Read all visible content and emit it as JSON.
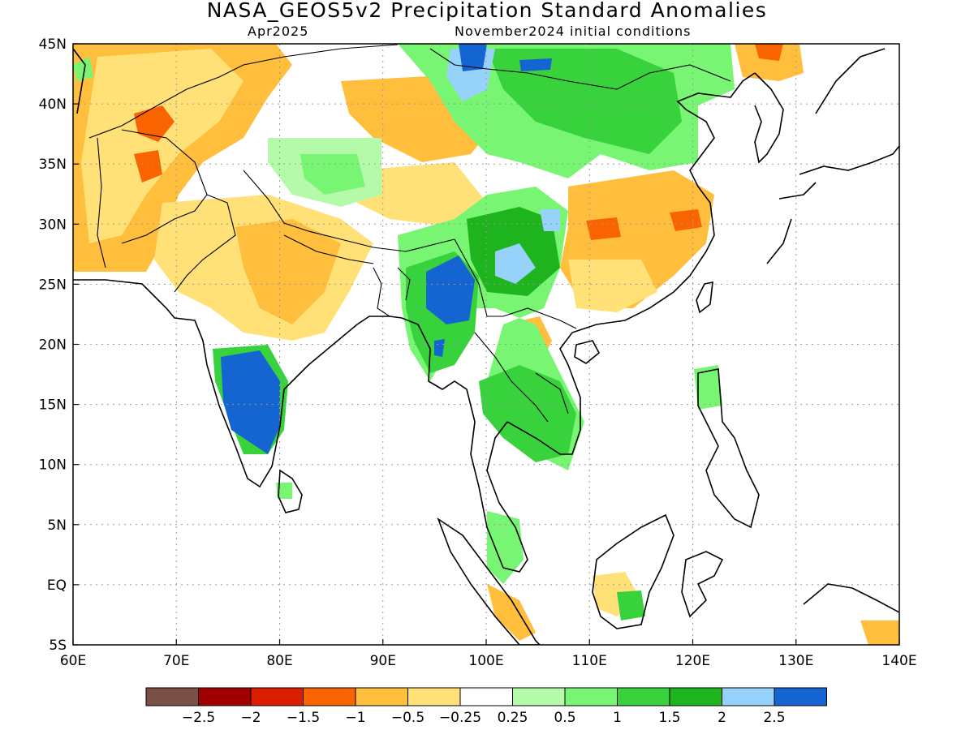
{
  "header": {
    "title": "NASA_GEOS5v2 Precipitation Standard Anomalies",
    "valid_month": "Apr2025",
    "init_conditions": "November2024 initial conditions"
  },
  "map": {
    "lon_range": [
      60,
      140
    ],
    "lat_range": [
      -5,
      45
    ],
    "lon_ticks": [
      "60E",
      "70E",
      "80E",
      "90E",
      "100E",
      "110E",
      "120E",
      "130E",
      "140E"
    ],
    "lat_ticks": [
      "45N",
      "40N",
      "35N",
      "30N",
      "25N",
      "20N",
      "15N",
      "10N",
      "5N",
      "EQ",
      "5S"
    ],
    "grid": "dotted"
  },
  "colorbar": {
    "colors": [
      "#7a5046",
      "#a00000",
      "#dc1e00",
      "#fa6400",
      "#ffbe3c",
      "#ffe178",
      "#ffffff",
      "#b4faaa",
      "#78f573",
      "#37d23c",
      "#1eb41e",
      "#96d2fa",
      "#1464d2"
    ],
    "labels": [
      "-2.5",
      "-2",
      "-1.5",
      "-1",
      "-0.5",
      "-0.25",
      "0.25",
      "0.5",
      "1",
      "1.5",
      "2",
      "2.5"
    ]
  }
}
